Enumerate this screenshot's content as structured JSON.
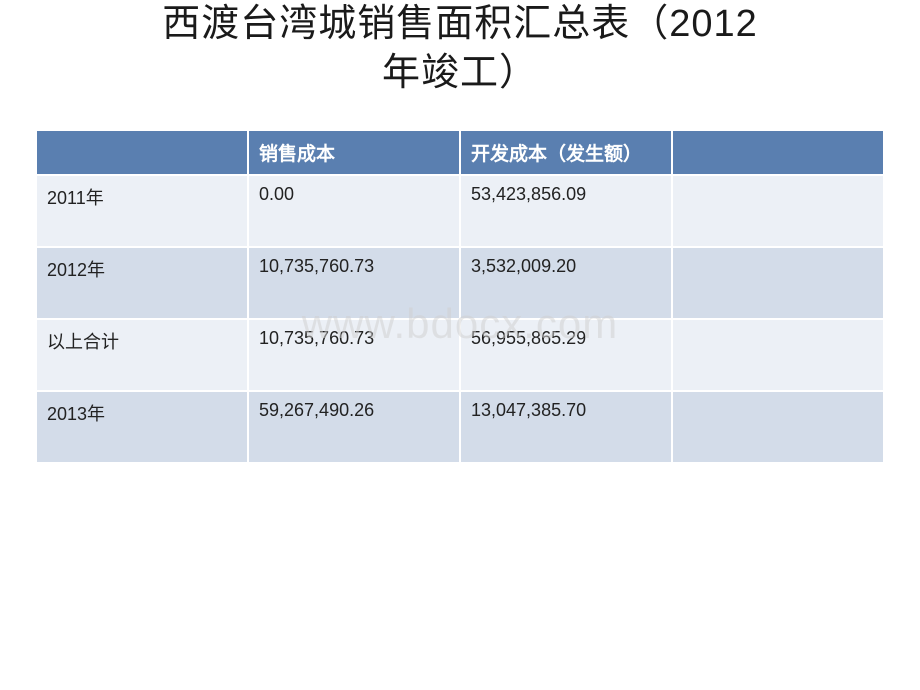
{
  "title_line1": "西渡台湾城销售面积汇总表（2012",
  "title_line2": "年竣工）",
  "watermark": "www.bdocx.com",
  "table": {
    "header_bg": "#5a7fb0",
    "row_light_bg": "#ecf0f6",
    "row_dark_bg": "#d3dce9",
    "border_color": "#ffffff",
    "text_color": "#222222",
    "header_text_color": "#ffffff",
    "font_size_header": 19,
    "font_size_cell": 18,
    "columns": [
      "",
      "销售成本",
      "开发成本（发生额）",
      ""
    ],
    "rows": [
      {
        "label": "2011年",
        "sales_cost": "0.00",
        "dev_cost": "53,423,856.09",
        "extra": "",
        "variant": "light"
      },
      {
        "label": "2012年",
        "sales_cost": "10,735,760.73",
        "dev_cost": "3,532,009.20",
        "extra": "",
        "variant": "dark"
      },
      {
        "label": "以上合计",
        "sales_cost": "10,735,760.73",
        "dev_cost": "56,955,865.29",
        "extra": "",
        "variant": "light"
      },
      {
        "label": "2013年",
        "sales_cost": "59,267,490.26",
        "dev_cost": "13,047,385.70",
        "extra": "",
        "variant": "dark"
      }
    ]
  }
}
